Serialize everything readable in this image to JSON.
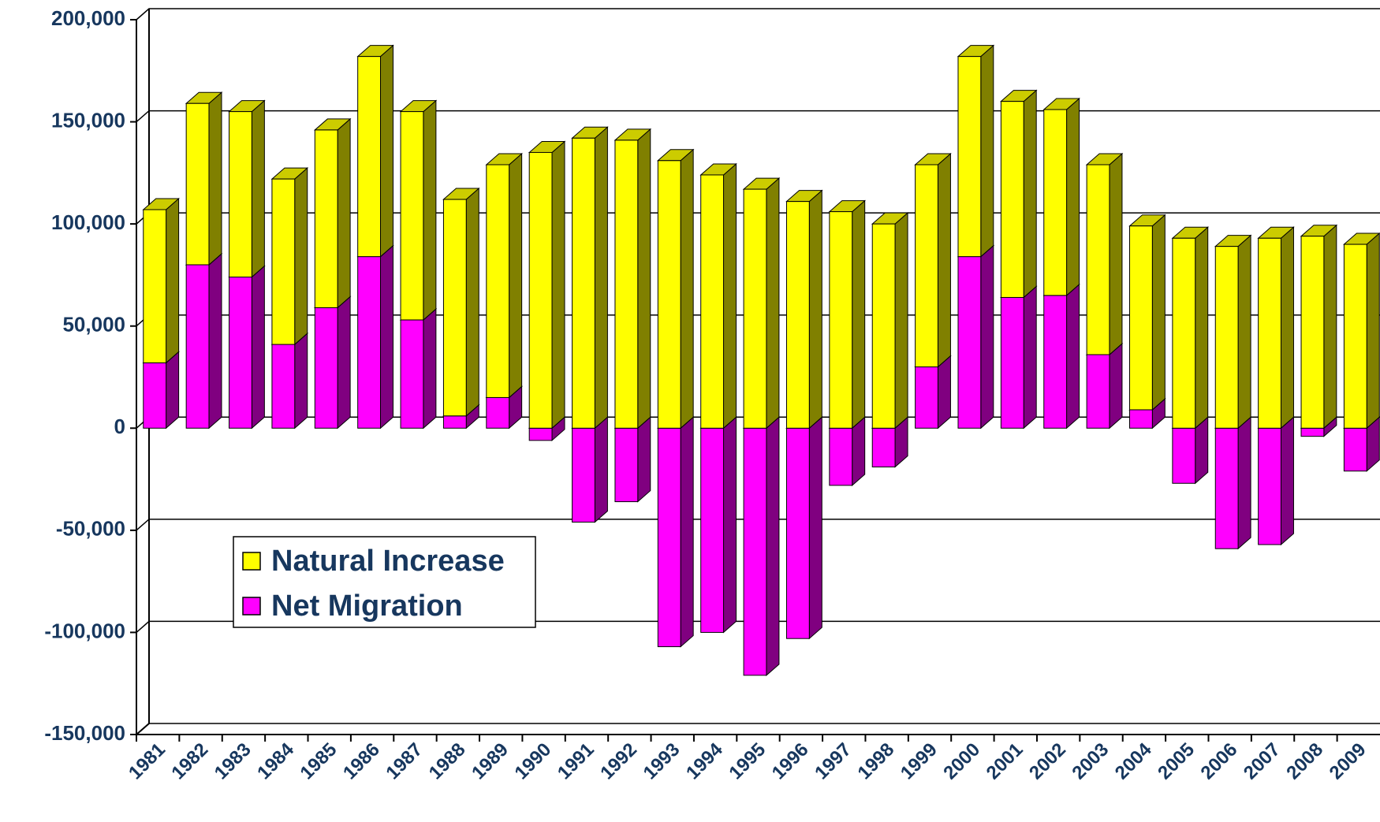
{
  "chart_data": {
    "type": "bar3d_stacked",
    "categories": [
      "1981",
      "1982",
      "1983",
      "1984",
      "1985",
      "1986",
      "1987",
      "1988",
      "1989",
      "1990",
      "1991",
      "1992",
      "1993",
      "1994",
      "1995",
      "1996",
      "1997",
      "1998",
      "1999",
      "2000",
      "2001",
      "2002",
      "2003",
      "2004",
      "2005",
      "2006",
      "2007",
      "2008",
      "2009"
    ],
    "series": [
      {
        "name": "Net Migration",
        "color": "#ff00ff",
        "values": [
          32000,
          80000,
          74000,
          41000,
          59000,
          84000,
          53000,
          6000,
          15000,
          -6000,
          -46000,
          -36000,
          -107000,
          -100000,
          -121000,
          -103000,
          -28000,
          -19000,
          30000,
          84000,
          64000,
          65000,
          36000,
          9000,
          -27000,
          -59000,
          -57000,
          -4000,
          -21000
        ]
      },
      {
        "name": "Natural Increase",
        "color": "#ffff00",
        "values": [
          75000,
          79000,
          81000,
          81000,
          87000,
          98000,
          102000,
          106000,
          114000,
          135000,
          142000,
          141000,
          131000,
          124000,
          117000,
          111000,
          106000,
          100000,
          99000,
          98000,
          96000,
          91000,
          93000,
          90000,
          93000,
          89000,
          93000,
          94000,
          90000
        ]
      }
    ],
    "legend_order": [
      1,
      0
    ],
    "ylim": [
      -150000,
      200000
    ],
    "yticks": [
      {
        "value": -150000,
        "label": "-150,000"
      },
      {
        "value": -100000,
        "label": "-100,000"
      },
      {
        "value": -50000,
        "label": "-50,000"
      },
      0,
      {
        "value": 50000,
        "label": "50,000"
      },
      {
        "value": 100000,
        "label": "100,000"
      },
      {
        "value": 150000,
        "label": "150,000"
      },
      {
        "value": 200000,
        "label": "200,000"
      }
    ],
    "grid": true
  }
}
